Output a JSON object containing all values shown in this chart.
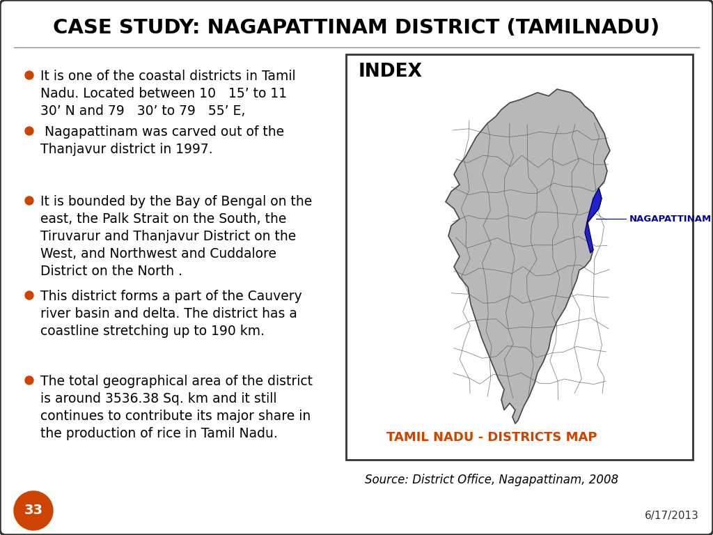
{
  "title": "CASE STUDY: NAGAPATTINAM DISTRICT (TAMILNADU)",
  "title_fontsize": 21,
  "title_color": "#000000",
  "bg_color": "#ffffff",
  "border_color": "#333333",
  "bullet_points": [
    "It is one of the coastal districts in Tamil\nNadu. Located between 10   15’ to 11\n30’ N and 79   30’ to 79   55’ E,",
    " Nagapattinam was carved out of the\nThanjavur district in 1997.",
    "It is bounded by the Bay of Bengal on the\neast, the Palk Strait on the South, the\nTiruvarur and Thanjavur District on the\nWest, and Northwest and Cuddalore\nDistrict on the North .",
    "This district forms a part of the Cauvery\nriver basin and delta. The district has a\ncoastline stretching up to 190 km.",
    "The total geographical area of the district\nis around 3536.38 Sq. km and it still\ncontinues to contribute its major share in\nthe production of rice in Tamil Nadu."
  ],
  "bullet_color": "#cc4400",
  "text_color": "#000000",
  "text_fontsize": 13.5,
  "index_label": "INDEX",
  "index_label_fontsize": 19,
  "map_caption": "TAMIL NADU - DISTRICTS MAP",
  "map_caption_color": "#cc4400",
  "map_caption_fontsize": 13,
  "nagapattinam_label": "NAGAPATTINAM",
  "nagapattinam_color": "#000099",
  "source_text": "Source: District Office, Nagapattinam, 2008",
  "source_fontsize": 12,
  "date_text": "6/17/2013",
  "date_fontsize": 11,
  "page_num": "33",
  "page_circle_color": "#cc4400",
  "page_num_color": "#ffffff"
}
